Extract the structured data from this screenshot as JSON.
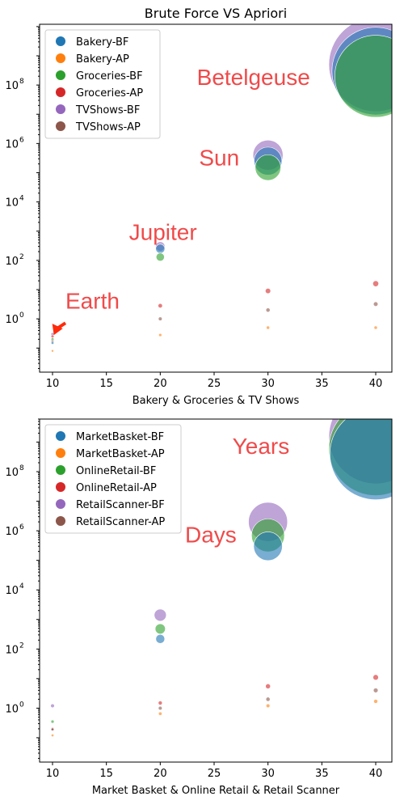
{
  "chart_data": [
    {
      "type": "scatter",
      "title": "Brute Force VS Apriori",
      "xlabel": "Bakery & Groceries & TV Shows",
      "ylabel": "",
      "yscale": "log",
      "xlim": [
        8.8,
        41.5
      ],
      "ylim": [
        0.015,
        12000000000
      ],
      "xticks": [
        "10",
        "15",
        "20",
        "25",
        "30",
        "35",
        "40"
      ],
      "yticks": [
        {
          "value": 1,
          "base": "10",
          "exp": "0"
        },
        {
          "value": 100,
          "base": "10",
          "exp": "2"
        },
        {
          "value": 10000,
          "base": "10",
          "exp": "4"
        },
        {
          "value": 1000000,
          "base": "10",
          "exp": "6"
        },
        {
          "value": 100000000,
          "base": "10",
          "exp": "8"
        }
      ],
      "legend_position": "top-left",
      "series": [
        {
          "name": "Bakery-BF",
          "color": "#1f77b4",
          "x": [
            10,
            20,
            30,
            40
          ],
          "y": [
            0.15,
            250,
            250000,
            300000000
          ]
        },
        {
          "name": "Bakery-AP",
          "color": "#ff7f0e",
          "x": [
            10,
            20,
            30,
            40
          ],
          "y": [
            0.08,
            0.28,
            0.5,
            0.5
          ]
        },
        {
          "name": "Groceries-BF",
          "color": "#2ca02c",
          "x": [
            10,
            20,
            30,
            40
          ],
          "y": [
            0.2,
            130,
            150000,
            200000000
          ]
        },
        {
          "name": "Groceries-AP",
          "color": "#d62728",
          "x": [
            10,
            20,
            30,
            40
          ],
          "y": [
            0.25,
            2.8,
            9,
            16
          ]
        },
        {
          "name": "TVShows-BF",
          "color": "#9467bd",
          "x": [
            10,
            20,
            30,
            40
          ],
          "y": [
            0.3,
            300,
            400000,
            500000000
          ]
        },
        {
          "name": "TVShows-AP",
          "color": "#8c564b",
          "x": [
            10,
            20,
            30,
            40
          ],
          "y": [
            0.17,
            1.0,
            2.0,
            3.2
          ]
        }
      ],
      "annotations": [
        {
          "text": "Earth",
          "x": 11.2,
          "y": 2.2,
          "arrow": true,
          "arrow_from": [
            11.2,
            0.72
          ],
          "arrow_to": [
            10.2,
            0.28
          ]
        },
        {
          "text": "Jupiter",
          "x": 17.1,
          "y": 500
        },
        {
          "text": "Sun",
          "x": 23.6,
          "y": 180000
        },
        {
          "text": "Betelgeuse",
          "x": 23.4,
          "y": 100000000
        }
      ]
    },
    {
      "type": "scatter",
      "title": "",
      "xlabel": "Market Basket & Online Retail & Retail Scanner",
      "ylabel": "",
      "yscale": "log",
      "xlim": [
        8.8,
        41.5
      ],
      "ylim": [
        0.015,
        6000000000
      ],
      "xticks": [
        "10",
        "15",
        "20",
        "25",
        "30",
        "35",
        "40"
      ],
      "yticks": [
        {
          "value": 1,
          "base": "10",
          "exp": "0"
        },
        {
          "value": 100,
          "base": "10",
          "exp": "2"
        },
        {
          "value": 10000,
          "base": "10",
          "exp": "4"
        },
        {
          "value": 1000000,
          "base": "10",
          "exp": "6"
        },
        {
          "value": 100000000,
          "base": "10",
          "exp": "8"
        }
      ],
      "legend_position": "top-left",
      "series": [
        {
          "name": "MarketBasket-BF",
          "color": "#1f77b4",
          "x": [
            10,
            20,
            30,
            40
          ],
          "y": [
            0.2,
            220,
            300000,
            400000000
          ]
        },
        {
          "name": "MarketBasket-AP",
          "color": "#ff7f0e",
          "x": [
            10,
            20,
            30,
            40
          ],
          "y": [
            0.12,
            0.65,
            1.2,
            1.7
          ]
        },
        {
          "name": "OnlineRetail-BF",
          "color": "#2ca02c",
          "x": [
            10,
            20,
            30,
            40
          ],
          "y": [
            0.35,
            480,
            700000,
            600000000
          ]
        },
        {
          "name": "OnlineRetail-AP",
          "color": "#d62728",
          "x": [
            10,
            20,
            30,
            40
          ],
          "y": [
            0.2,
            1.5,
            5.5,
            11
          ]
        },
        {
          "name": "RetailScanner-BF",
          "color": "#9467bd",
          "x": [
            10,
            20,
            30,
            40
          ],
          "y": [
            1.2,
            1400,
            2000000,
            1500000000
          ]
        },
        {
          "name": "RetailScanner-AP",
          "color": "#8c564b",
          "x": [
            10,
            20,
            30,
            40
          ],
          "y": [
            0.19,
            1.0,
            2.0,
            4.0
          ]
        }
      ],
      "annotations": [
        {
          "text": "Years",
          "x": 26.7,
          "y": 400000000
        },
        {
          "text": "Days",
          "x": 22.3,
          "y": 400000
        }
      ]
    }
  ]
}
